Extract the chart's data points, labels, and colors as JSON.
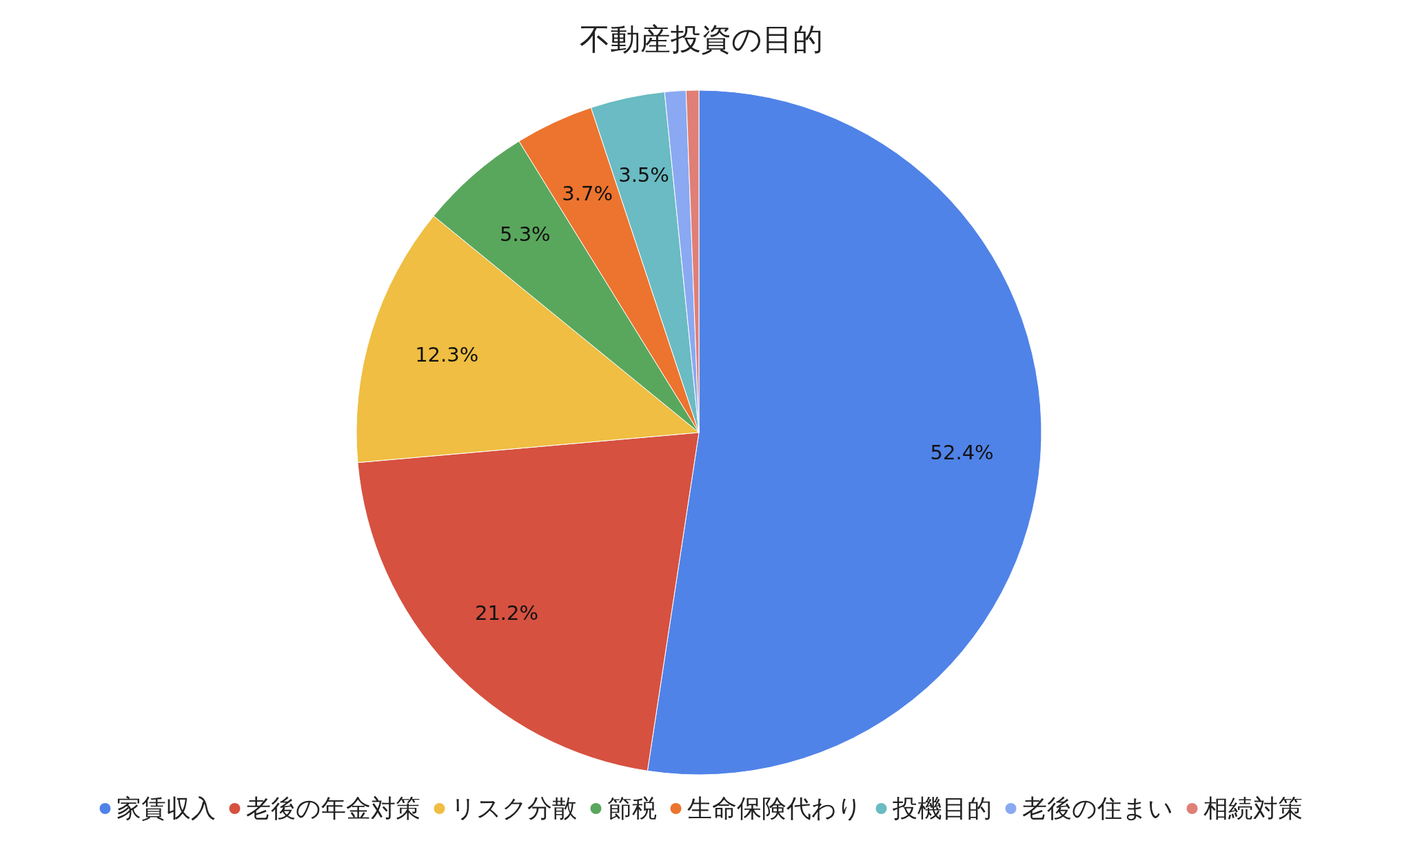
{
  "chart_data": {
    "type": "pie",
    "title": "不動産投資の目的",
    "categories": [
      "家賃収入",
      "老後の年金対策",
      "リスク分散",
      "節税",
      "生命保険代わり",
      "投機目的",
      "老後の住まい",
      "相続対策"
    ],
    "values": [
      52.4,
      21.2,
      12.3,
      5.3,
      3.7,
      3.5,
      1.0,
      0.6
    ],
    "colors": [
      "#5083e8",
      "#d65140",
      "#efbe42",
      "#59a75c",
      "#ec742e",
      "#6abbc3",
      "#8aa9f2",
      "#e07f76"
    ],
    "value_labels": [
      "52.4%",
      "21.2%",
      "12.3%",
      "5.3%",
      "3.7%",
      "3.5%",
      null,
      null
    ],
    "legend": "bottom"
  }
}
